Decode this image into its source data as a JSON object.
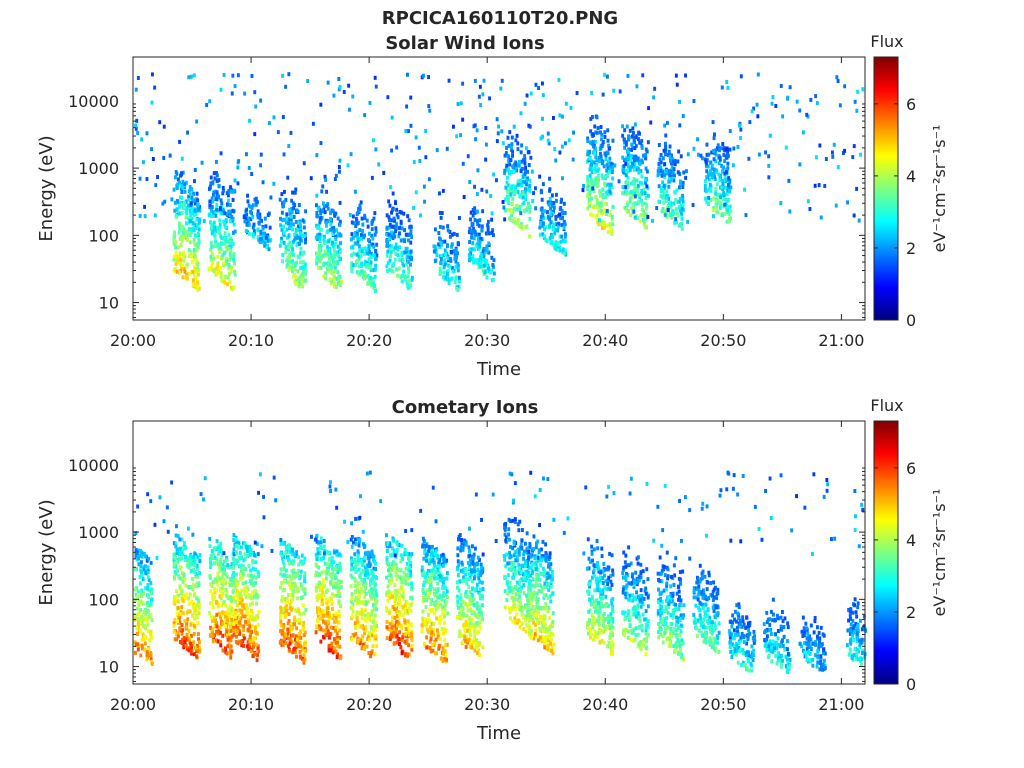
{
  "figure": {
    "title": "RPCICA160110T20.PNG"
  },
  "colorbar": {
    "colors": [
      "#00007f",
      "#0000ff",
      "#007fff",
      "#00ffff",
      "#7fff7f",
      "#ffff00",
      "#ff7f00",
      "#ff0000",
      "#7f0000"
    ]
  },
  "chart_data": [
    {
      "type": "heatmap",
      "title": "Solar Wind Ions",
      "xlabel": "Time",
      "ylabel": "Energy (eV)",
      "x_ticks": [
        "20:00",
        "20:10",
        "20:20",
        "20:30",
        "20:40",
        "20:50",
        "21:00"
      ],
      "xlim": [
        "20:00",
        "21:02"
      ],
      "y_scale": "log",
      "y_ticks": [
        10,
        100,
        1000,
        10000
      ],
      "y_tick_labels": [
        "10",
        "100",
        "1000",
        "10000"
      ],
      "ylim": [
        5.5,
        45000
      ],
      "colorbar": {
        "title": "Flux",
        "label": "eV⁻¹cm⁻²sr⁻¹s⁻¹",
        "range": [
          0,
          7.3
        ],
        "ticks": [
          0,
          2,
          4,
          6
        ]
      },
      "features": [
        {
          "time": "20:04",
          "energy_eV": 30,
          "peak_flux": 5.5
        },
        {
          "time": "20:07",
          "energy_eV": 30,
          "peak_flux": 5.0
        },
        {
          "time": "20:10",
          "energy_eV": 120,
          "peak_flux": 3.0
        },
        {
          "time": "20:13",
          "energy_eV": 30,
          "peak_flux": 4.5
        },
        {
          "time": "20:16",
          "energy_eV": 30,
          "peak_flux": 4.5
        },
        {
          "time": "20:19",
          "energy_eV": 30,
          "peak_flux": 4.0
        },
        {
          "time": "20:22",
          "energy_eV": 30,
          "peak_flux": 4.0
        },
        {
          "time": "20:26",
          "energy_eV": 30,
          "peak_flux": 3.5
        },
        {
          "time": "20:29",
          "energy_eV": 40,
          "peak_flux": 3.5
        },
        {
          "time": "20:32",
          "energy_eV": 200,
          "peak_flux": 4.5
        },
        {
          "time": "20:35",
          "energy_eV": 100,
          "peak_flux": 3.5
        },
        {
          "time": "20:39",
          "energy_eV": 200,
          "peak_flux": 5.0
        },
        {
          "time": "20:42",
          "energy_eV": 250,
          "peak_flux": 4.5
        },
        {
          "time": "20:45",
          "energy_eV": 250,
          "peak_flux": 4.0
        },
        {
          "time": "20:49",
          "energy_eV": 300,
          "peak_flux": 4.0
        }
      ]
    },
    {
      "type": "heatmap",
      "title": "Cometary Ions",
      "xlabel": "Time",
      "ylabel": "Energy (eV)",
      "x_ticks": [
        "20:00",
        "20:10",
        "20:20",
        "20:30",
        "20:40",
        "20:50",
        "21:00"
      ],
      "xlim": [
        "20:00",
        "21:02"
      ],
      "y_scale": "log",
      "y_ticks": [
        10,
        100,
        1000,
        10000
      ],
      "y_tick_labels": [
        "10",
        "100",
        "1000",
        "10000"
      ],
      "ylim": [
        5.5,
        45000
      ],
      "colorbar": {
        "title": "Flux",
        "label": "eV⁻¹cm⁻²sr⁻¹s⁻¹",
        "range": [
          0,
          7.3
        ],
        "ticks": [
          0,
          2,
          4,
          6
        ]
      },
      "features": [
        {
          "time": "20:00",
          "energy_eV": 20,
          "peak_flux": 6.0
        },
        {
          "time": "20:04",
          "energy_eV": 25,
          "peak_flux": 6.5
        },
        {
          "time": "20:07",
          "energy_eV": 25,
          "peak_flux": 6.5
        },
        {
          "time": "20:09",
          "energy_eV": 25,
          "peak_flux": 6.5
        },
        {
          "time": "20:13",
          "energy_eV": 22,
          "peak_flux": 6.5
        },
        {
          "time": "20:16",
          "energy_eV": 25,
          "peak_flux": 6.5
        },
        {
          "time": "20:19",
          "energy_eV": 25,
          "peak_flux": 6.0
        },
        {
          "time": "20:22",
          "energy_eV": 25,
          "peak_flux": 6.5
        },
        {
          "time": "20:25",
          "energy_eV": 22,
          "peak_flux": 6.0
        },
        {
          "time": "20:28",
          "energy_eV": 25,
          "peak_flux": 5.5
        },
        {
          "time": "20:32",
          "energy_eV": 60,
          "peak_flux": 5.0
        },
        {
          "time": "20:34",
          "energy_eV": 30,
          "peak_flux": 5.5
        },
        {
          "time": "20:39",
          "energy_eV": 30,
          "peak_flux": 5.0
        },
        {
          "time": "20:42",
          "energy_eV": 30,
          "peak_flux": 4.5
        },
        {
          "time": "20:45",
          "energy_eV": 25,
          "peak_flux": 4.5
        },
        {
          "time": "20:48",
          "energy_eV": 30,
          "peak_flux": 4.0
        },
        {
          "time": "20:51",
          "energy_eV": 15,
          "peak_flux": 3.5
        },
        {
          "time": "20:54",
          "energy_eV": 15,
          "peak_flux": 3.5
        },
        {
          "time": "20:57",
          "energy_eV": 15,
          "peak_flux": 3.0
        },
        {
          "time": "21:01",
          "energy_eV": 15,
          "peak_flux": 3.5
        }
      ]
    }
  ]
}
